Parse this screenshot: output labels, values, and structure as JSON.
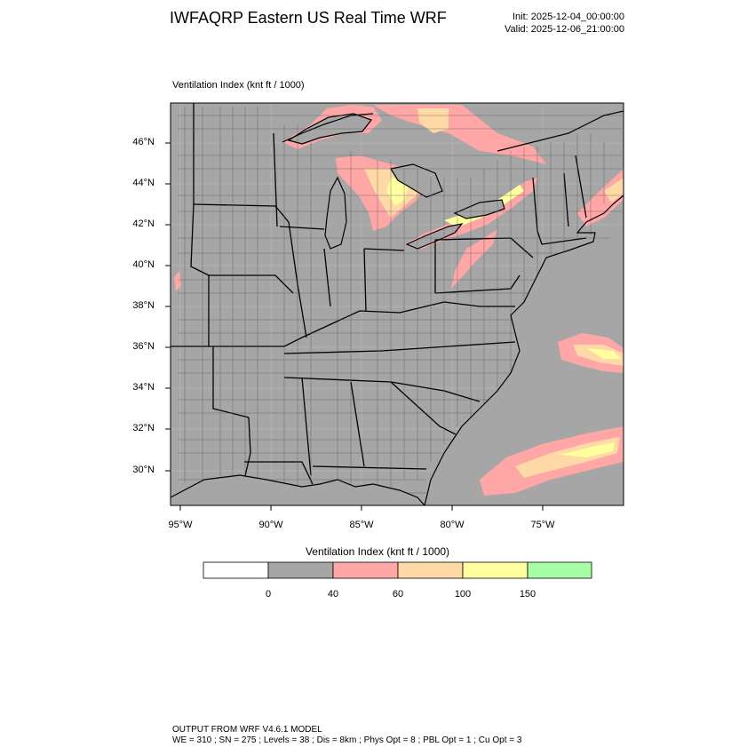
{
  "header": {
    "title": "IWFAQRP Eastern US Real Time WRF",
    "init": "Init: 2025-12-04_00:00:00",
    "valid": "Valid: 2025-12-06_21:00:00"
  },
  "map": {
    "label": "Ventilation Index   (knt ft / 1000)",
    "lat_labels": [
      "46°N",
      "44°N",
      "42°N",
      "40°N",
      "38°N",
      "36°N",
      "34°N",
      "32°N",
      "30°N"
    ],
    "lon_labels": [
      "95°W",
      "90°W",
      "85°W",
      "80°W",
      "75°W"
    ],
    "colors": {
      "land_low": "#a6a6a6",
      "pink": "#ffa6a6",
      "peach": "#ffd9a6",
      "yellow": "#ffff9f",
      "green": "#a6ffa6"
    }
  },
  "colorbar": {
    "title": "Ventilation Index  (knt ft / 1000)",
    "boxes": [
      "#ffffff",
      "#a6a6a6",
      "#ffa6a6",
      "#ffd9a6",
      "#ffff9f",
      "#a6ffa6"
    ],
    "labels": [
      "0",
      "40",
      "60",
      "100",
      "150"
    ]
  },
  "footer": {
    "line1": "OUTPUT FROM WRF V4.6.1 MODEL",
    "line2": "WE = 310 ; SN = 275 ; Levels = 38 ; Dis = 8km ; Phys Opt = 8 ; PBL Opt = 1 ; Cu Opt = 3"
  }
}
